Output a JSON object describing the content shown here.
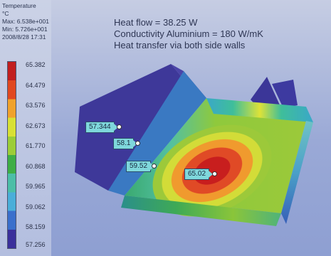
{
  "legend": {
    "title": "Temperature",
    "unit": "°C",
    "max": "Max: 6.538e+001",
    "min": "Min: 5.726e+001",
    "date": "2008/8/28 17:31",
    "ticks": [
      "65.382",
      "64.479",
      "63.576",
      "62.673",
      "61.770",
      "60.868",
      "59.965",
      "59.062",
      "58.159",
      "57.256"
    ]
  },
  "info": {
    "heat_flow": "Heat flow = 38.25 W",
    "conductivity": "Conductivity Aluminium = 180 W/mK",
    "transfer": "Heat transfer via both side walls"
  },
  "probes": [
    "57.344",
    "58.1",
    "59.52",
    "65.02"
  ],
  "colors": {
    "hot": "#c21f1f",
    "cold": "#3a2f9b",
    "probe_fill": "#7fd8dc"
  }
}
